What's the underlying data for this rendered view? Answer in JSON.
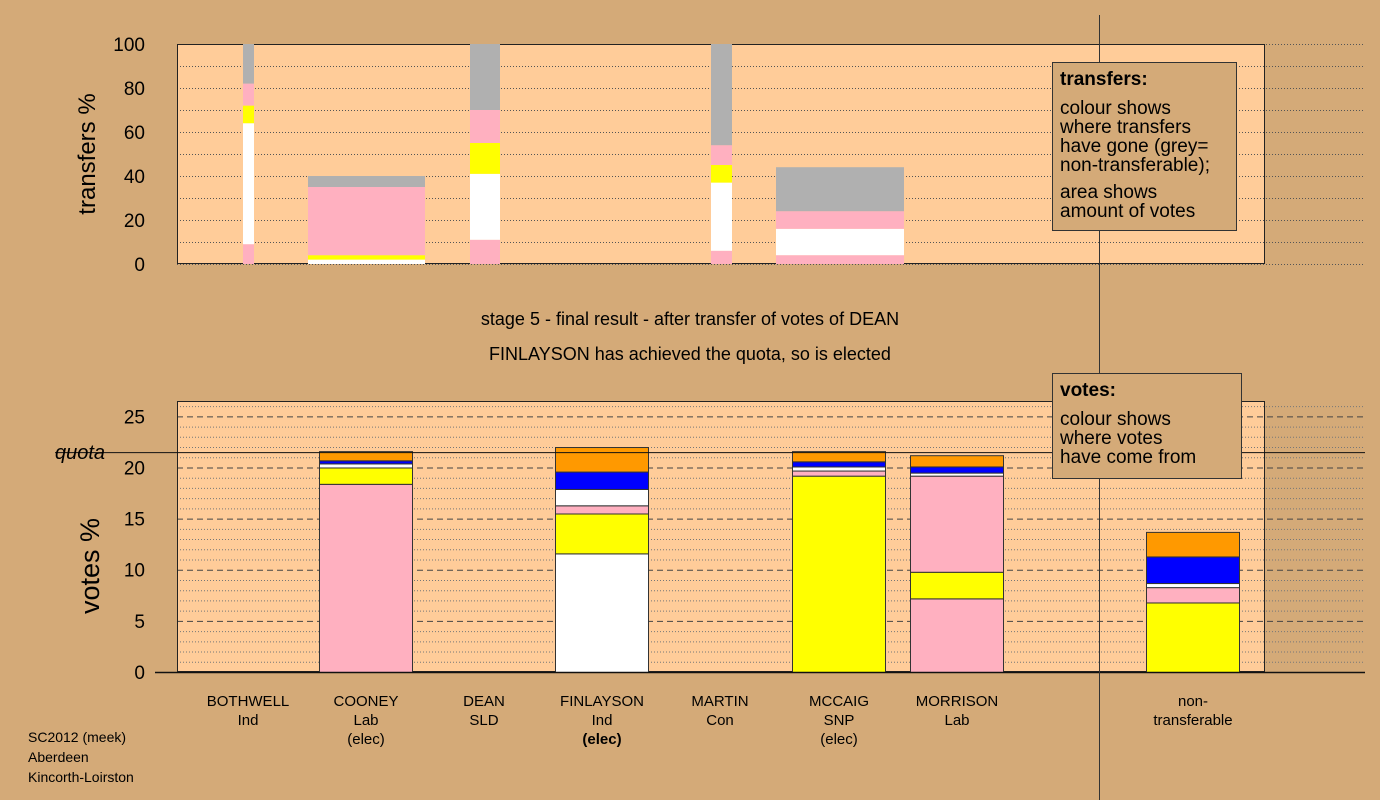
{
  "stage_line1": "stage 5 - final result - after transfer of votes of DEAN",
  "stage_line2": "FINLAYSON has achieved the quota, so is elected",
  "transfers_legend": {
    "title": "transfers:",
    "lines1": [
      "colour shows",
      "where transfers",
      "have gone (grey=",
      "non-transferable);"
    ],
    "lines2": [
      "area shows",
      "amount of votes"
    ]
  },
  "votes_legend": {
    "title": "votes:",
    "lines": [
      "colour shows",
      "where votes",
      "have come from"
    ]
  },
  "footer": [
    "SC2012 (meek)",
    "Aberdeen",
    "Kincorth-Loirston"
  ],
  "colors": {
    "background": "#d4aa78",
    "plot_area": "#ffcc99",
    "Lab": "#ffb0c0",
    "SNP": "#ffff00",
    "Ind": "#ffffff",
    "SLD": "#ff9900",
    "Con": "#0000ff",
    "non_transferable": "#b0b0b0"
  },
  "chart_data": [
    {
      "type": "bar",
      "stacked": true,
      "ylabel": "transfers %",
      "ylim": [
        0,
        100
      ],
      "yticks": [
        0,
        20,
        40,
        60,
        80,
        100
      ],
      "grid": "dotted",
      "bars": [
        {
          "candidate": "BOTHWELL",
          "width": "narrow",
          "segments": [
            {
              "color": "Lab",
              "from": 0,
              "to": 9
            },
            {
              "color": "Ind",
              "from": 9,
              "to": 64
            },
            {
              "color": "SNP",
              "from": 64,
              "to": 72
            },
            {
              "color": "Lab",
              "from": 72,
              "to": 82
            },
            {
              "color": "non_transferable",
              "from": 82,
              "to": 100
            }
          ]
        },
        {
          "candidate": "COONEY",
          "width": "wide",
          "segments": [
            {
              "color": "Ind",
              "from": 0,
              "to": 2
            },
            {
              "color": "SNP",
              "from": 2,
              "to": 4
            },
            {
              "color": "Lab",
              "from": 4,
              "to": 35
            },
            {
              "color": "non_transferable",
              "from": 35,
              "to": 40
            }
          ]
        },
        {
          "candidate": "DEAN",
          "width": "medium",
          "segments": [
            {
              "color": "Lab",
              "from": 0,
              "to": 11
            },
            {
              "color": "Ind",
              "from": 11,
              "to": 41
            },
            {
              "color": "SNP",
              "from": 41,
              "to": 55
            },
            {
              "color": "Lab",
              "from": 55,
              "to": 70
            },
            {
              "color": "non_transferable",
              "from": 70,
              "to": 100
            }
          ]
        },
        {
          "candidate": "MARTIN",
          "width": "narrow",
          "segments": [
            {
              "color": "Lab",
              "from": 0,
              "to": 6
            },
            {
              "color": "Ind",
              "from": 6,
              "to": 37
            },
            {
              "color": "SNP",
              "from": 37,
              "to": 45
            },
            {
              "color": "Lab",
              "from": 45,
              "to": 54
            },
            {
              "color": "non_transferable",
              "from": 54,
              "to": 100
            }
          ]
        },
        {
          "candidate": "MCCAIG",
          "width": "wide",
          "segments": [
            {
              "color": "Lab",
              "from": 0,
              "to": 4
            },
            {
              "color": "Ind",
              "from": 4,
              "to": 16
            },
            {
              "color": "Lab",
              "from": 16,
              "to": 24
            },
            {
              "color": "non_transferable",
              "from": 24,
              "to": 44
            }
          ]
        }
      ]
    },
    {
      "type": "bar",
      "stacked": true,
      "ylabel": "votes %",
      "ylim": [
        0,
        26.5
      ],
      "yticks": [
        0,
        5,
        10,
        15,
        20,
        25
      ],
      "quota": 21.5,
      "quota_label": "quota",
      "grid": "dashed",
      "categories": [
        {
          "name": "BOTHWELL",
          "party": "Ind",
          "status": ""
        },
        {
          "name": "COONEY",
          "party": "Lab",
          "status": "(elec)"
        },
        {
          "name": "DEAN",
          "party": "SLD",
          "status": ""
        },
        {
          "name": "FINLAYSON",
          "party": "Ind",
          "status": "(elec)",
          "status_bold": true
        },
        {
          "name": "MARTIN",
          "party": "Con",
          "status": ""
        },
        {
          "name": "MCCAIG",
          "party": "SNP",
          "status": "(elec)"
        },
        {
          "name": "MORRISON",
          "party": "Lab",
          "status": ""
        },
        {
          "name": "",
          "party": "",
          "status": ""
        },
        {
          "name": "non-",
          "party": "transferable",
          "status": ""
        }
      ],
      "bars": [
        {
          "category": 1,
          "segments": [
            {
              "color": "Lab",
              "from": 0,
              "to": 18.4
            },
            {
              "color": "SNP",
              "from": 18.4,
              "to": 20.0
            },
            {
              "color": "Ind",
              "from": 20.0,
              "to": 20.4
            },
            {
              "color": "Con",
              "from": 20.4,
              "to": 20.7
            },
            {
              "color": "SLD",
              "from": 20.7,
              "to": 21.6
            }
          ]
        },
        {
          "category": 3,
          "segments": [
            {
              "color": "Ind",
              "from": 0,
              "to": 11.6
            },
            {
              "color": "SNP",
              "from": 11.6,
              "to": 15.5
            },
            {
              "color": "Lab",
              "from": 15.5,
              "to": 16.3
            },
            {
              "color": "Ind",
              "from": 16.3,
              "to": 17.9
            },
            {
              "color": "Con",
              "from": 17.9,
              "to": 19.6
            },
            {
              "color": "SLD",
              "from": 19.6,
              "to": 22.0
            }
          ]
        },
        {
          "category": 5,
          "segments": [
            {
              "color": "SNP",
              "from": 0,
              "to": 19.2
            },
            {
              "color": "Lab",
              "from": 19.2,
              "to": 19.7
            },
            {
              "color": "Ind",
              "from": 19.7,
              "to": 20.1
            },
            {
              "color": "Con",
              "from": 20.1,
              "to": 20.6
            },
            {
              "color": "SLD",
              "from": 20.6,
              "to": 21.6
            }
          ]
        },
        {
          "category": 6,
          "segments": [
            {
              "color": "Lab",
              "from": 0,
              "to": 7.2
            },
            {
              "color": "SNP",
              "from": 7.2,
              "to": 9.8
            },
            {
              "color": "Lab",
              "from": 9.8,
              "to": 19.2
            },
            {
              "color": "Ind",
              "from": 19.2,
              "to": 19.5
            },
            {
              "color": "Con",
              "from": 19.5,
              "to": 20.1
            },
            {
              "color": "SLD",
              "from": 20.1,
              "to": 21.2
            }
          ]
        },
        {
          "category": 8,
          "segments": [
            {
              "color": "SNP",
              "from": 0,
              "to": 6.8
            },
            {
              "color": "Lab",
              "from": 6.8,
              "to": 8.3
            },
            {
              "color": "Ind",
              "from": 8.3,
              "to": 8.7
            },
            {
              "color": "Con",
              "from": 8.7,
              "to": 11.3
            },
            {
              "color": "SLD",
              "from": 11.3,
              "to": 13.7
            }
          ]
        }
      ]
    }
  ]
}
